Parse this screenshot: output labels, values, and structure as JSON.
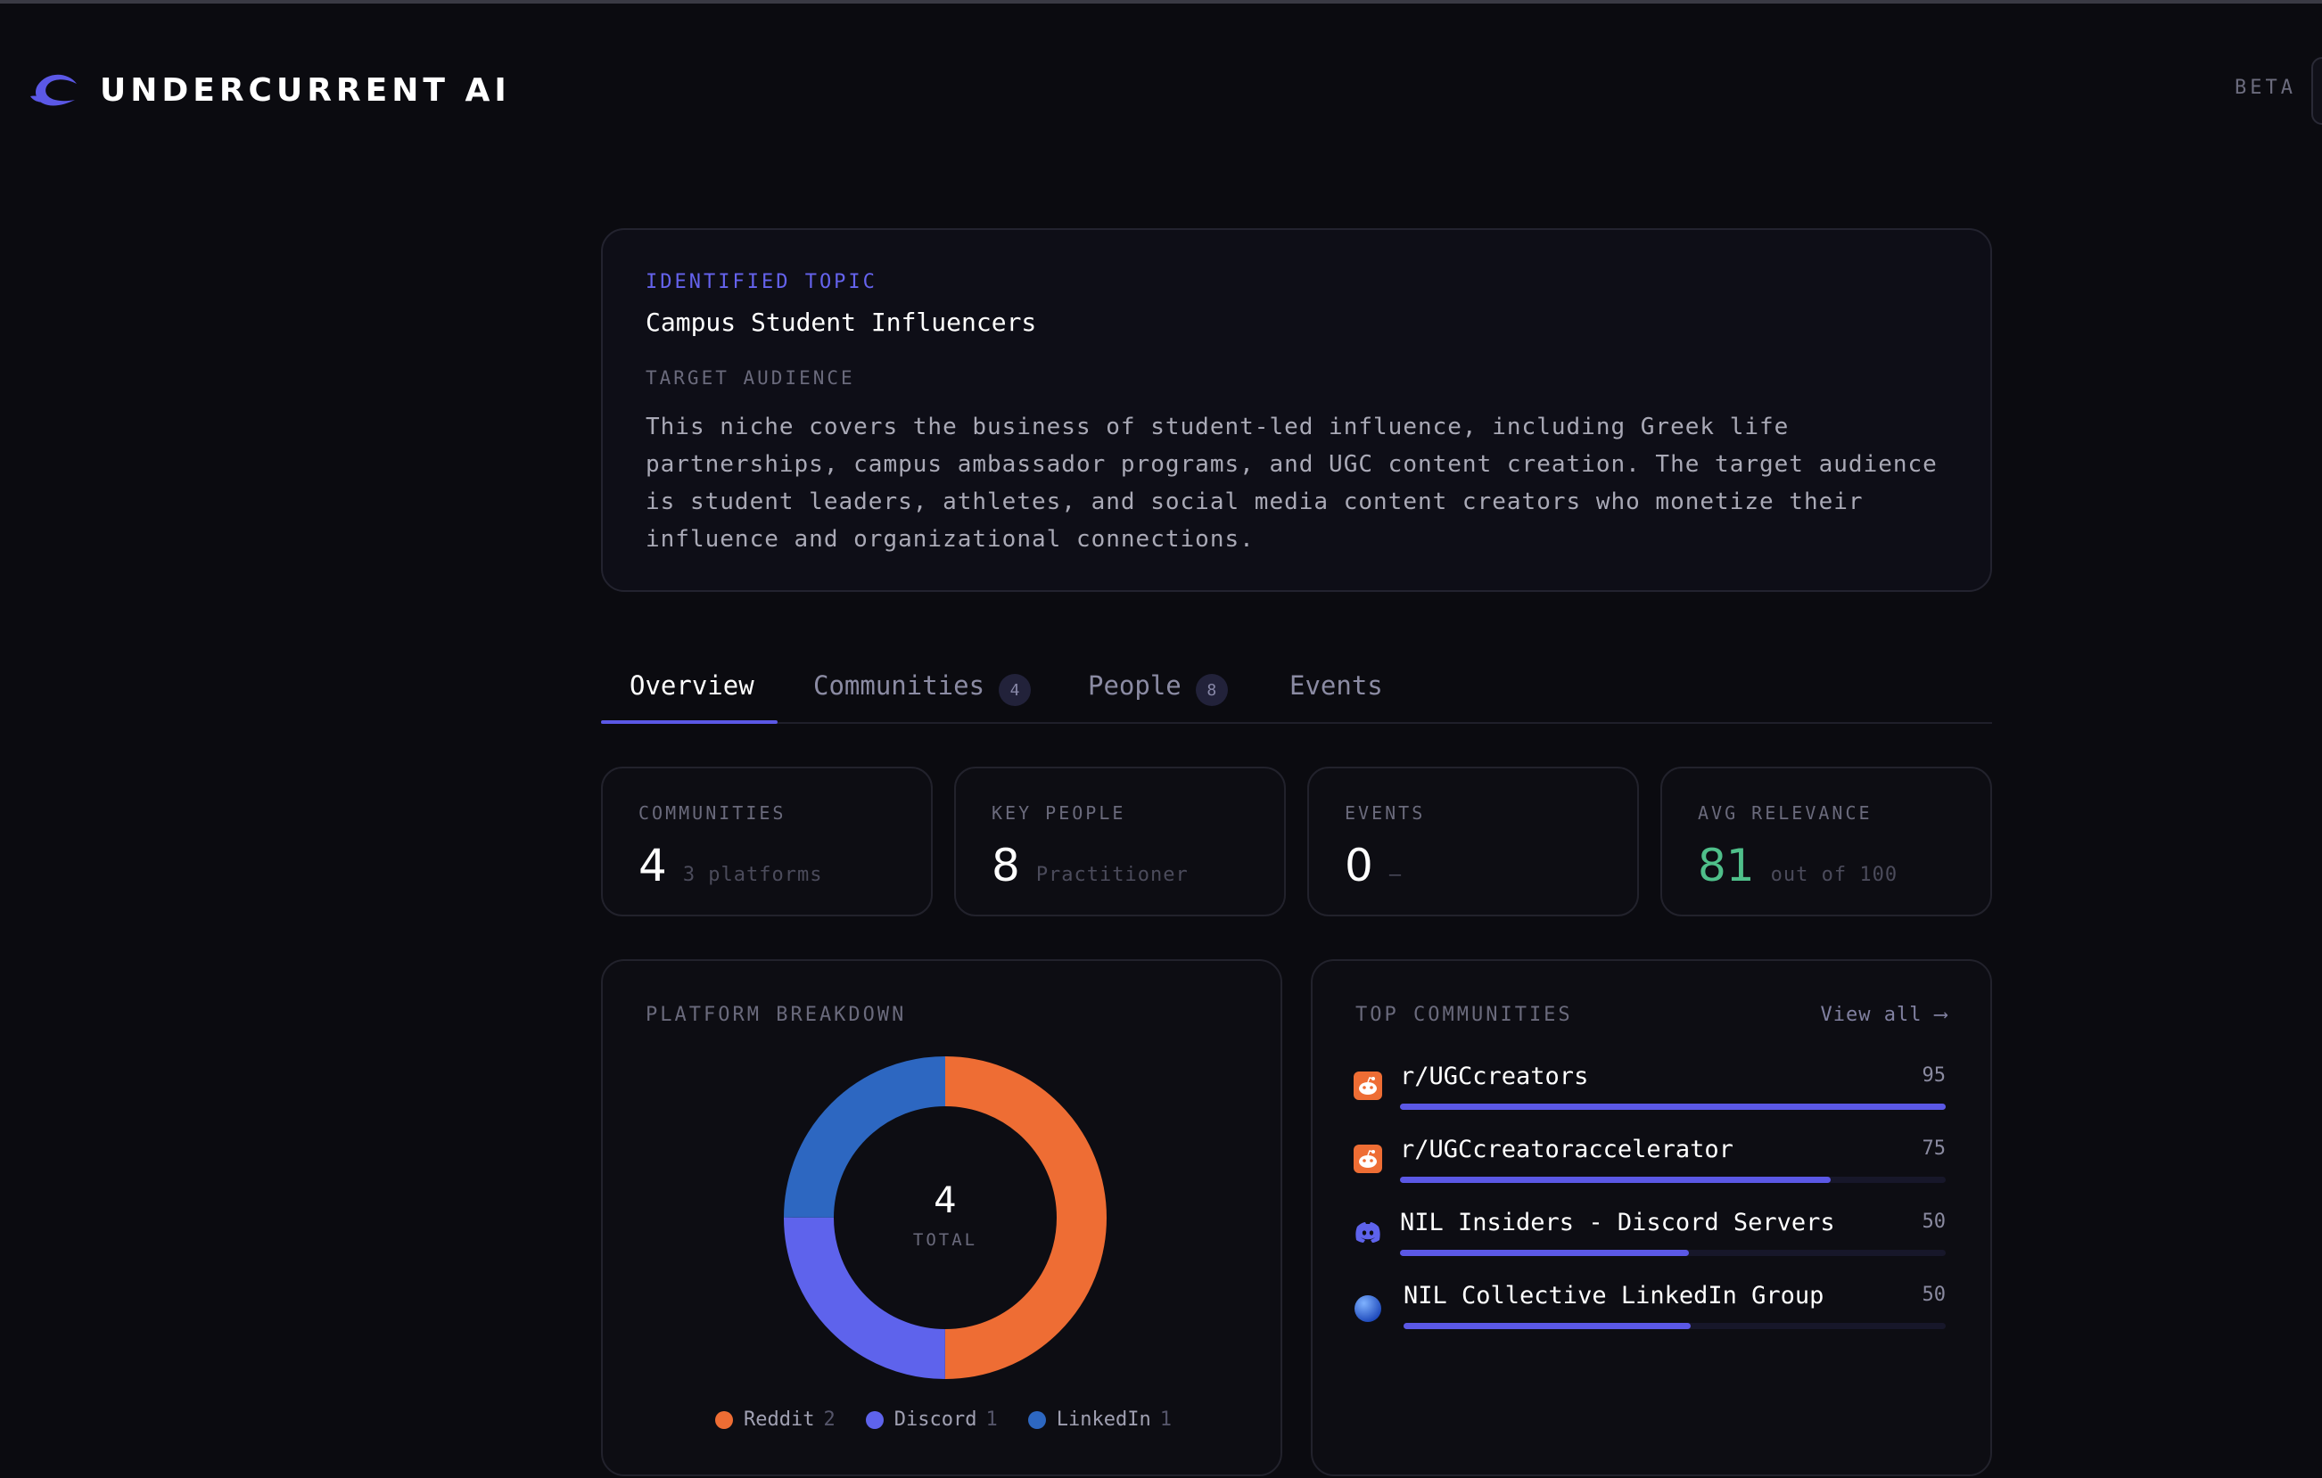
{
  "header": {
    "brand": "UNDERCURRENT AI",
    "beta_label": "BETA"
  },
  "topic": {
    "label": "IDENTIFIED TOPIC",
    "title": "Campus Student Influencers",
    "audience_label": "TARGET AUDIENCE",
    "audience_text": "This niche covers the business of student-led influence, including Greek life partnerships, campus ambassador programs, and UGC content creation. The target audience is student leaders, athletes, and social media content creators who monetize their influence and organizational connections."
  },
  "tabs": [
    {
      "label": "Overview",
      "badge": ""
    },
    {
      "label": "Communities",
      "badge": "4"
    },
    {
      "label": "People",
      "badge": "8"
    },
    {
      "label": "Events",
      "badge": ""
    }
  ],
  "stats": [
    {
      "label": "COMMUNITIES",
      "value": "4",
      "sub": "3 platforms"
    },
    {
      "label": "KEY PEOPLE",
      "value": "8",
      "sub": "Practitioner"
    },
    {
      "label": "EVENTS",
      "value": "0",
      "sub": "—"
    },
    {
      "label": "AVG RELEVANCE",
      "value": "81",
      "sub": "out of 100"
    }
  ],
  "platform_breakdown": {
    "title": "PLATFORM BREAKDOWN",
    "total": "4",
    "total_label": "TOTAL",
    "legend": [
      {
        "name": "Reddit",
        "count": "2",
        "color": "#ee6d34"
      },
      {
        "name": "Discord",
        "count": "1",
        "color": "#5e63ec"
      },
      {
        "name": "LinkedIn",
        "count": "1",
        "color": "#2d67c1"
      }
    ]
  },
  "top_communities": {
    "title": "TOP COMMUNITIES",
    "view_all": "View all ⟶",
    "items": [
      {
        "name": "r/UGCcreators",
        "score": "95",
        "relevance": 1.0,
        "icon": "reddit-icon"
      },
      {
        "name": "r/UGCcreatoraccelerator",
        "score": "75",
        "relevance": 0.79,
        "icon": "reddit-icon"
      },
      {
        "name": "NIL Insiders - Discord Servers",
        "score": "50",
        "relevance": 0.53,
        "icon": "discord-icon"
      },
      {
        "name": "NIL Collective LinkedIn Group",
        "score": "50",
        "relevance": 0.53,
        "icon": "globe-icon"
      }
    ]
  },
  "colors": {
    "accent": "#5b58e6",
    "reddit": "#ee6d34",
    "discord": "#5e63ec",
    "linkedin": "#2d67c1",
    "green": "#4fbf8a"
  }
}
